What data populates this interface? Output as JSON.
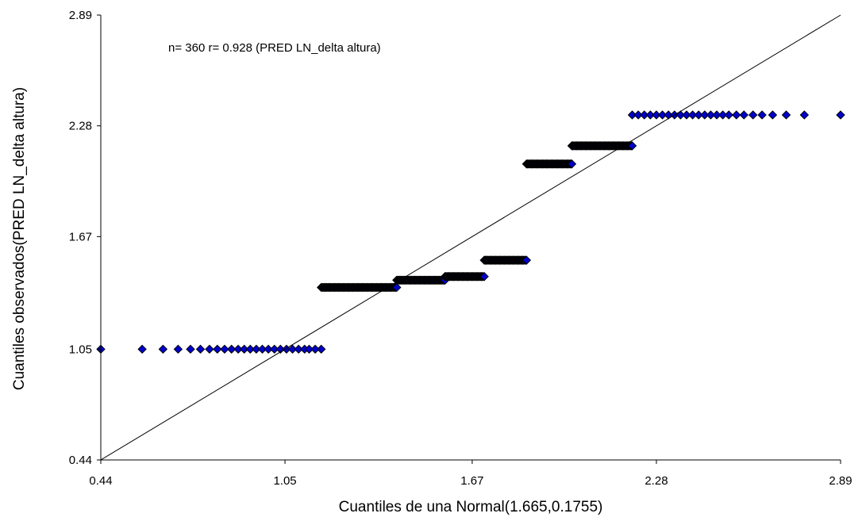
{
  "chart_data": {
    "type": "scatter",
    "title": "",
    "annotation": "n= 360 r= 0.928 (PRED LN_delta altura)",
    "xlabel": "Cuantiles de una Normal(1.665,0.1755)",
    "ylabel": "Cuantiles observados(PRED LN_delta altura)",
    "xlim": [
      0.44,
      2.89
    ],
    "ylim": [
      0.44,
      2.89
    ],
    "xticks": [
      "0.44",
      "1.05",
      "1.67",
      "2.28",
      "2.89"
    ],
    "yticks": [
      "0.44",
      "1.05",
      "1.67",
      "2.28",
      "2.89"
    ],
    "xtick_values": [
      0.44,
      1.05,
      1.67,
      2.28,
      2.89
    ],
    "ytick_values": [
      0.44,
      1.05,
      1.67,
      2.28,
      2.89
    ],
    "reference_line": {
      "from": [
        0.44,
        0.44
      ],
      "to": [
        2.89,
        2.89
      ]
    },
    "point_color": "#0000cc",
    "point_edge_color": "#000000",
    "grid": false,
    "legend": "none",
    "clusters": [
      {
        "y": 1.05,
        "x": [
          0.44,
          0.577,
          0.646,
          0.696,
          0.737,
          0.77,
          0.8,
          0.826,
          0.85,
          0.873,
          0.895,
          0.915,
          0.935,
          0.955,
          0.975,
          0.995,
          1.015,
          1.035,
          1.055,
          1.075,
          1.095,
          1.115,
          1.13,
          1.15,
          1.17
        ]
      },
      {
        "y": 1.39,
        "x_range": [
          1.17,
          1.42
        ]
      },
      {
        "y": 1.43,
        "x_range": [
          1.42,
          1.58
        ]
      },
      {
        "y": 1.45,
        "x_range": [
          1.58,
          1.71
        ]
      },
      {
        "y": 1.54,
        "x_range": [
          1.71,
          1.85
        ]
      },
      {
        "y": 2.07,
        "x_range": [
          1.85,
          2.0
        ]
      },
      {
        "y": 2.17,
        "x_range": [
          2.0,
          2.2
        ]
      },
      {
        "y": 2.34,
        "x": [
          2.2,
          2.22,
          2.24,
          2.26,
          2.28,
          2.3,
          2.32,
          2.34,
          2.36,
          2.38,
          2.4,
          2.42,
          2.44,
          2.46,
          2.48,
          2.5,
          2.52,
          2.545,
          2.57,
          2.6,
          2.63,
          2.665,
          2.71,
          2.77,
          2.89
        ]
      }
    ]
  }
}
